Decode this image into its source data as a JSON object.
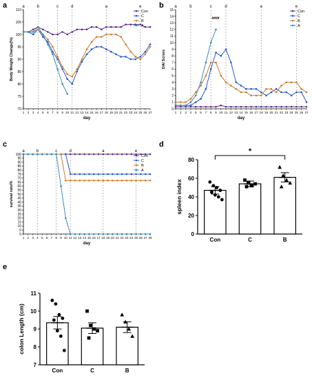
{
  "panel_labels": [
    "a",
    "b",
    "c",
    "d",
    "e"
  ],
  "series_colors": {
    "Con": "#5b2a86",
    "C": "#2456c8",
    "B": "#c87a2a",
    "A": "#3a8ab5"
  },
  "chart_data": [
    {
      "panel": "a",
      "type": "line",
      "xlabel": "day",
      "ylabel": "Body Weight Change(%)",
      "x": [
        1,
        2,
        3,
        4,
        5,
        6,
        7,
        8,
        9,
        10,
        11,
        12,
        13,
        14,
        15,
        16,
        17,
        18,
        19,
        20,
        21,
        22,
        23,
        24,
        25,
        26,
        27
      ],
      "ylim": [
        70,
        110
      ],
      "yticks": [
        70,
        75,
        80,
        85,
        90,
        95,
        100,
        105,
        110
      ],
      "phase_lines": [
        {
          "day": 1,
          "label": "a"
        },
        {
          "day": 4,
          "label": "b"
        },
        {
          "day": 8,
          "label": "c"
        },
        {
          "day": 11,
          "label": "d"
        },
        {
          "day": 18,
          "label": "a"
        },
        {
          "day": 25,
          "label": "e"
        }
      ],
      "legend": "top-right",
      "series": [
        {
          "name": "Con",
          "values": [
            101,
            101,
            102,
            103,
            102,
            101,
            100,
            100,
            101,
            100,
            101,
            102,
            102,
            102,
            103,
            103,
            102,
            103,
            103,
            103,
            103,
            104,
            104,
            104,
            104,
            103,
            103
          ]
        },
        {
          "name": "C",
          "values": [
            101,
            101,
            100,
            102,
            99,
            97,
            93,
            90,
            86,
            82,
            80,
            85,
            89,
            92,
            94,
            95,
            95,
            94,
            93,
            92,
            91,
            91,
            90,
            90,
            91,
            93,
            96
          ]
        },
        {
          "name": "B",
          "values": [
            101,
            101,
            101,
            102,
            100,
            98,
            95,
            91,
            87,
            84,
            83,
            86,
            90,
            94,
            97,
            99,
            99,
            100,
            100,
            100,
            99,
            96,
            93,
            91,
            90,
            92,
            95
          ]
        },
        {
          "name": "A",
          "values": [
            101,
            101,
            101,
            103,
            100,
            96,
            92,
            86,
            80,
            76,
            null,
            null,
            null,
            null,
            null,
            null,
            null,
            null,
            null,
            null,
            null,
            null,
            null,
            null,
            null,
            null,
            null
          ]
        }
      ]
    },
    {
      "panel": "b",
      "type": "line",
      "xlabel": "day",
      "ylabel": "DAI Scrore",
      "x": [
        1,
        2,
        3,
        4,
        5,
        6,
        7,
        8,
        9,
        10,
        11,
        12,
        13,
        14,
        15,
        16,
        17,
        18,
        19,
        20,
        21,
        22,
        23,
        24,
        25,
        26,
        27
      ],
      "ylim": [
        0,
        15
      ],
      "yticks": [
        0,
        1,
        2,
        3,
        4,
        5,
        6,
        7,
        8,
        9,
        10,
        11,
        12,
        13,
        14,
        15
      ],
      "phase_lines": [
        {
          "day": 1,
          "label": "a"
        },
        {
          "day": 4,
          "label": "b"
        },
        {
          "day": 8,
          "label": "c"
        },
        {
          "day": 11,
          "label": "d"
        },
        {
          "day": 18,
          "label": "a"
        },
        {
          "day": 25,
          "label": "e"
        }
      ],
      "legend": "top-right",
      "series": [
        {
          "name": "Con",
          "values": [
            0.3,
            0.3,
            0.3,
            0.3,
            0.3,
            0.3,
            0.3,
            0.3,
            0.3,
            0.5,
            0.3,
            0.3,
            0.3,
            0.3,
            0.3,
            0.3,
            0.3,
            0.3,
            0.3,
            0.3,
            0.3,
            0.3,
            0.3,
            0.3,
            0.3,
            0.3,
            0.3
          ]
        },
        {
          "name": "C",
          "values": [
            0.5,
            0.5,
            0.5,
            0.5,
            1,
            1.5,
            3,
            6,
            8.5,
            8,
            9,
            7,
            4,
            3.5,
            3,
            3,
            3,
            2.5,
            2,
            2.5,
            3,
            2.5,
            2.5,
            2,
            2.5,
            2.5,
            1
          ]
        },
        {
          "name": "B",
          "values": [
            1,
            1,
            1,
            1.5,
            2.5,
            3.5,
            5,
            7,
            7,
            5,
            4,
            3.5,
            3,
            2.5,
            2.5,
            2,
            2,
            2,
            3,
            3,
            2.5,
            3.5,
            4,
            4,
            4,
            3,
            2.5
          ]
        },
        {
          "name": "A",
          "values": [
            0.5,
            0.5,
            0.5,
            1,
            2,
            4,
            7,
            10,
            12,
            null,
            null,
            null,
            null,
            null,
            null,
            null,
            null,
            null,
            null,
            null,
            null,
            null,
            null,
            null,
            null,
            null,
            null
          ]
        }
      ],
      "annotations": [
        "####"
      ]
    },
    {
      "panel": "c",
      "type": "line",
      "xlabel": "day",
      "ylabel": "survival rate/%",
      "x": [
        1,
        2,
        3,
        4,
        5,
        6,
        7,
        8,
        9,
        10,
        11,
        12,
        13,
        14,
        15,
        16,
        17,
        18,
        19,
        20,
        21,
        22,
        23,
        24,
        25,
        26,
        27,
        28
      ],
      "ylim": [
        0,
        100
      ],
      "yticks": [
        0,
        5,
        10,
        15,
        20,
        25,
        30,
        35,
        40,
        45,
        50,
        55,
        60,
        65,
        70,
        75,
        80,
        85,
        90,
        95,
        100
      ],
      "phase_lines": [
        {
          "day": 1,
          "label": "a"
        },
        {
          "day": 4,
          "label": "b"
        },
        {
          "day": 8,
          "label": "c"
        },
        {
          "day": 11,
          "label": "d"
        },
        {
          "day": 18,
          "label": "a"
        },
        {
          "day": 25,
          "label": "e"
        }
      ],
      "legend": "top-right",
      "series": [
        {
          "name": "Con",
          "values": [
            100,
            100,
            100,
            100,
            100,
            100,
            100,
            100,
            100,
            100,
            100,
            100,
            100,
            100,
            100,
            100,
            100,
            100,
            100,
            100,
            100,
            100,
            100,
            100,
            100,
            100,
            100,
            100
          ]
        },
        {
          "name": "C",
          "values": [
            100,
            100,
            100,
            100,
            100,
            100,
            100,
            100,
            100,
            100,
            75,
            75,
            75,
            75,
            75,
            75,
            75,
            75,
            75,
            75,
            75,
            75,
            75,
            75,
            75,
            75,
            75,
            75
          ]
        },
        {
          "name": "B",
          "values": [
            100,
            100,
            100,
            100,
            100,
            100,
            100,
            100,
            100,
            67,
            67,
            67,
            67,
            67,
            67,
            67,
            67,
            67,
            67,
            67,
            67,
            67,
            67,
            67,
            67,
            67,
            67,
            67
          ]
        },
        {
          "name": "A",
          "values": [
            100,
            100,
            100,
            100,
            100,
            100,
            100,
            100,
            60,
            20,
            0,
            0,
            0,
            0,
            0,
            0,
            0,
            0,
            0,
            0,
            0,
            0,
            0,
            0,
            0,
            0,
            0,
            0
          ]
        }
      ]
    },
    {
      "panel": "d",
      "type": "bar",
      "ylabel": "spleen index",
      "categories": [
        "Con",
        "C",
        "B"
      ],
      "values": [
        47,
        54,
        61
      ],
      "errors": [
        4,
        3,
        5
      ],
      "ylim": [
        0,
        80
      ],
      "yticks": [
        0,
        20,
        40,
        60,
        80
      ],
      "points": [
        [
          56,
          52,
          50,
          47,
          45,
          42,
          40,
          37
        ],
        [
          58,
          55,
          52,
          54,
          51
        ],
        [
          72,
          63,
          58,
          55,
          51
        ]
      ],
      "markers": [
        "circle",
        "square",
        "triangle"
      ],
      "significance": {
        "from": "Con",
        "to": "B",
        "label": "*"
      }
    },
    {
      "panel": "e",
      "type": "bar",
      "ylabel": "colon Length (cm)",
      "categories": [
        "Con",
        "C",
        "B"
      ],
      "values": [
        9.35,
        9.05,
        9.1
      ],
      "errors": [
        0.35,
        0.3,
        0.3
      ],
      "ylim": [
        7,
        11
      ],
      "yticks": [
        7,
        8,
        9,
        10,
        11
      ],
      "points": [
        [
          10.6,
          10.4,
          9.8,
          9.6,
          9.5,
          8.9,
          8.6,
          7.8
        ],
        [
          10.0,
          9.2,
          9.0,
          8.9,
          8.5
        ],
        [
          9.8,
          9.4,
          9.0,
          8.6
        ]
      ],
      "markers": [
        "circle",
        "square",
        "triangle"
      ]
    }
  ]
}
